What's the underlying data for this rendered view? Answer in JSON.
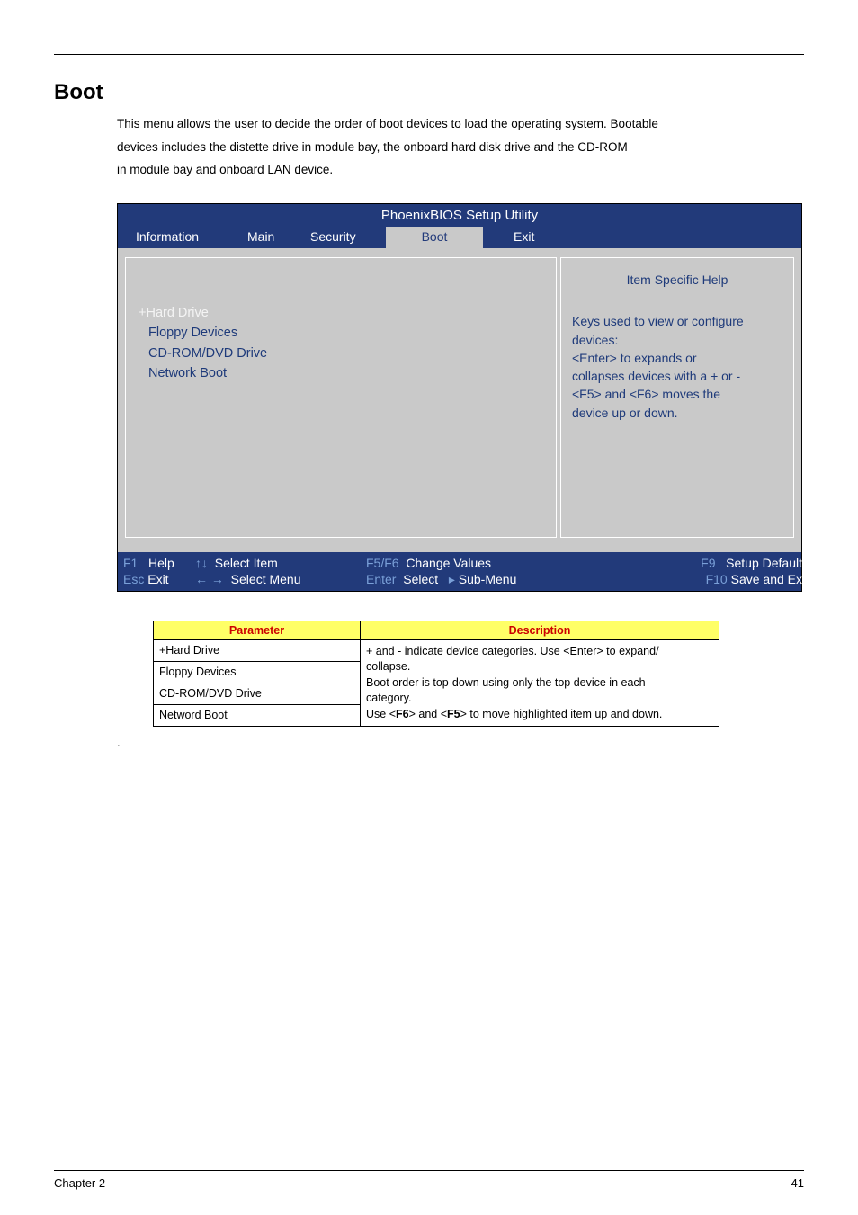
{
  "section_title": "Boot",
  "intro_lines": [
    "This menu allows the user to decide the order of boot devices to load the operating system. Bootable",
    "devices includes the distette drive in module bay, the onboard hard disk drive and the CD-ROM",
    "in module bay and onboard LAN device."
  ],
  "bios": {
    "title": "PhoenixBIOS Setup Utility",
    "tabs": {
      "information": "Information",
      "main": "Main",
      "security": "Security",
      "boot": "Boot",
      "exit": "Exit"
    },
    "left_items": {
      "selected": "+Hard Drive",
      "floppy": "Floppy Devices",
      "cdrom": "CD-ROM/DVD Drive",
      "network": "Network Boot"
    },
    "help": {
      "header": "Item Specific Help",
      "l1": "Keys used to view or configure",
      "l2": "devices:",
      "l3": "<Enter> to expands or",
      "l4": "collapses devices with a + or -",
      "l5": "<F5>  and <F6> moves the",
      "l6": "device up or down."
    },
    "footer": {
      "f1_key": "F1",
      "f1_label": "Help",
      "si_key": "↑↓",
      "si_label": "Select Item",
      "cv_key": "F5/F6",
      "cv_label": "Change Values",
      "sd_key": "F9",
      "sd_label": "Setup Defaults",
      "esc_key": "Esc",
      "esc_label": "Exit",
      "sm_key": "← →",
      "sm_label": "Select Menu",
      "es_key": "Enter",
      "es_label": "Select",
      "sub_label": "Sub-Menu",
      "se_key": "F10",
      "se_label": "Save and Exit"
    }
  },
  "param_table": {
    "h_param": "Parameter",
    "h_desc": "Description",
    "rows": {
      "r1": "+Hard Drive",
      "r2": "Floppy Devices",
      "r3": "CD-ROM/DVD Drive",
      "r4": "Netword Boot"
    },
    "desc": {
      "l1": "+ and - indicate device categories. Use <Enter> to expand/",
      "l2": "collapse.",
      "l3": "Boot order is top-down using only the top device in each",
      "l4": "category.",
      "l5a": "Use <",
      "l5b": "F6",
      "l5c": "> and <",
      "l5d": "F5",
      "l5e": "> to move highlighted item up and down."
    }
  },
  "dot": ".",
  "footer": {
    "chapter": "Chapter 2",
    "page": "41"
  },
  "colors": {
    "bios_blue": "#223a7a",
    "bios_gray": "#c9c9c9",
    "tab_active_fg": "#223a7a",
    "help_fg": "#1e3a7a",
    "selected_fg": "#f4f4f4",
    "key_color": "#7aa0d8",
    "param_header_bg": "#ffff66",
    "param_header_fg": "#cc0000"
  }
}
